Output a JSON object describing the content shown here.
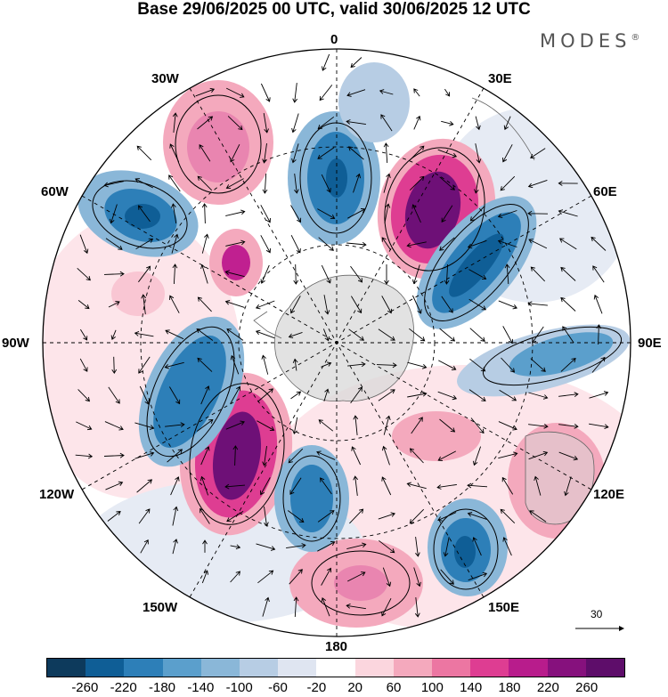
{
  "header": {
    "title": "Base 29/06/2025 00 UTC, valid 30/06/2025 12 UTC",
    "brand": "MODES",
    "brand_mark": "®"
  },
  "map": {
    "projection": "south-polar-stereographic",
    "longitude_labels": {
      "top": "0",
      "top_right": "30E",
      "right_upper": "60E",
      "right": "90E",
      "right_lower": "120E",
      "bottom_right": "150E",
      "bottom": "180",
      "bottom_left": "150W",
      "left_lower": "120W",
      "left": "90W",
      "left_upper": "60W",
      "top_left": "30W"
    },
    "reference_vector": "30"
  },
  "colorbar": {
    "ticks": [
      "-260",
      "-220",
      "-180",
      "-140",
      "-100",
      "-60",
      "-20",
      "20",
      "60",
      "100",
      "140",
      "180",
      "220",
      "260"
    ],
    "colors": [
      "#0d3a5c",
      "#0f5e96",
      "#2d7fb8",
      "#5b9fcc",
      "#8ab7d8",
      "#b7cde4",
      "#dfe5f1",
      "#ffffff",
      "#fbd6de",
      "#f4a9bd",
      "#ec76a2",
      "#de3d92",
      "#b81c8c",
      "#86117d",
      "#5e0d6a"
    ]
  }
}
